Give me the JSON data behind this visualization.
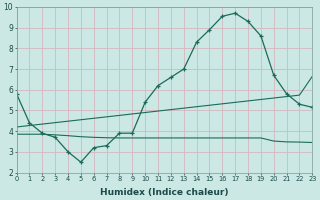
{
  "xlabel": "Humidex (Indice chaleur)",
  "background_color": "#cce8e4",
  "grid_color": "#d4b8c0",
  "line_color": "#1a6b5a",
  "xlim": [
    0,
    23
  ],
  "ylim": [
    2,
    10
  ],
  "xticks": [
    0,
    1,
    2,
    3,
    4,
    5,
    6,
    7,
    8,
    9,
    10,
    11,
    12,
    13,
    14,
    15,
    16,
    17,
    18,
    19,
    20,
    21,
    22,
    23
  ],
  "yticks": [
    2,
    3,
    4,
    5,
    6,
    7,
    8,
    9,
    10
  ],
  "line1_x": [
    0,
    1,
    2,
    3,
    4,
    5,
    6,
    7,
    8,
    9,
    10,
    11,
    12,
    13,
    14,
    15,
    16,
    17,
    18,
    19,
    20,
    21,
    22,
    23
  ],
  "line1_y": [
    5.8,
    4.4,
    3.9,
    3.7,
    3.0,
    2.5,
    3.2,
    3.3,
    3.9,
    3.9,
    5.4,
    6.2,
    6.6,
    7.0,
    8.3,
    8.9,
    9.55,
    9.7,
    9.3,
    8.6,
    6.7,
    5.8,
    5.3,
    5.15
  ],
  "line2_x": [
    0,
    1,
    2,
    3,
    4,
    5,
    6,
    7,
    8,
    9,
    10,
    11,
    12,
    13,
    14,
    15,
    16,
    17,
    18,
    19,
    20,
    21,
    22,
    23
  ],
  "line2_y": [
    4.2,
    4.27,
    4.34,
    4.41,
    4.48,
    4.55,
    4.62,
    4.69,
    4.76,
    4.83,
    4.9,
    4.97,
    5.04,
    5.11,
    5.18,
    5.25,
    5.32,
    5.39,
    5.46,
    5.53,
    5.6,
    5.67,
    5.74,
    6.65
  ],
  "line3_x": [
    0,
    1,
    2,
    3,
    4,
    5,
    6,
    7,
    8,
    9,
    10,
    11,
    12,
    13,
    14,
    15,
    16,
    17,
    18,
    19,
    20,
    21,
    22,
    23
  ],
  "line3_y": [
    3.85,
    3.85,
    3.85,
    3.82,
    3.78,
    3.73,
    3.7,
    3.68,
    3.67,
    3.67,
    3.67,
    3.67,
    3.67,
    3.67,
    3.67,
    3.67,
    3.67,
    3.67,
    3.67,
    3.67,
    3.52,
    3.48,
    3.47,
    3.45
  ]
}
